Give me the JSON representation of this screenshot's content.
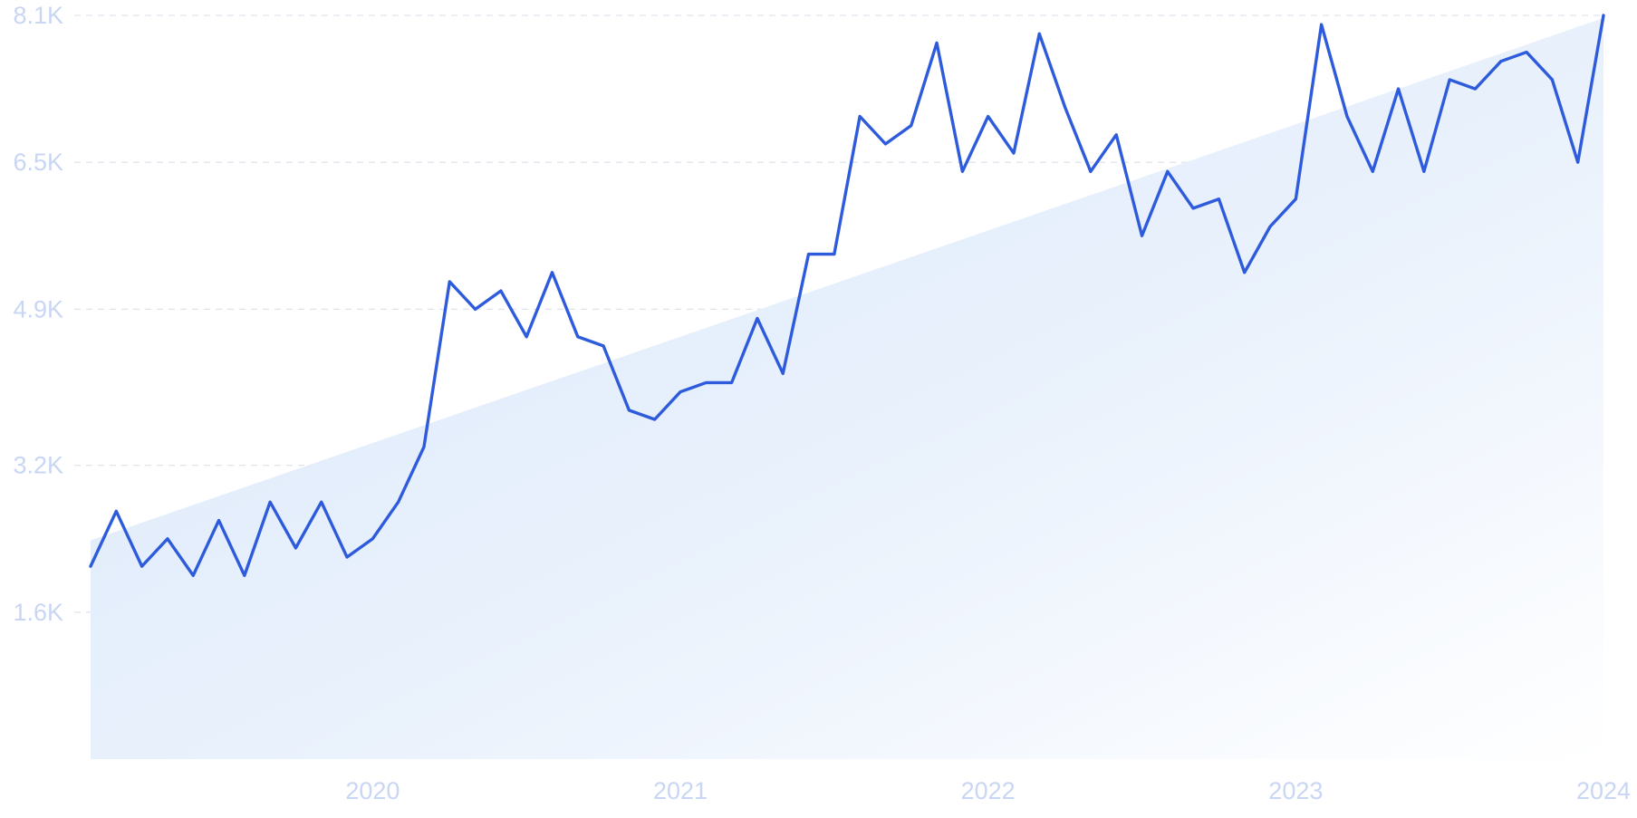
{
  "chart_data": {
    "type": "line",
    "title": "",
    "xlabel": "",
    "ylabel": "",
    "x_ticks": [
      "2020",
      "2021",
      "2022",
      "2023",
      "2024"
    ],
    "y_ticks": [
      "8.1K",
      "6.5K",
      "4.9K",
      "3.2K",
      "1.6K"
    ],
    "y_tick_values": [
      8100,
      6500,
      4900,
      3200,
      1600
    ],
    "ylim": [
      0,
      8100
    ],
    "xlim": [
      "2019-02",
      "2024-01"
    ],
    "grid": "horizontal dashed",
    "trend_area": true,
    "line_color": "#2e5bdc",
    "area_color": "#dbe8fa",
    "series": [
      {
        "x": [
          "2019-02",
          "2019-03",
          "2019-04",
          "2019-05",
          "2019-06",
          "2019-07",
          "2019-08",
          "2019-09",
          "2019-10",
          "2019-11",
          "2019-12",
          "2020-01",
          "2020-02",
          "2020-03",
          "2020-04",
          "2020-05",
          "2020-06",
          "2020-07",
          "2020-08",
          "2020-09",
          "2020-10",
          "2020-11",
          "2020-12",
          "2021-01",
          "2021-02",
          "2021-03",
          "2021-04",
          "2021-05",
          "2021-06",
          "2021-07",
          "2021-08",
          "2021-09",
          "2021-10",
          "2021-11",
          "2021-12",
          "2022-01",
          "2022-02",
          "2022-03",
          "2022-04",
          "2022-05",
          "2022-06",
          "2022-07",
          "2022-08",
          "2022-09",
          "2022-10",
          "2022-11",
          "2022-12",
          "2023-01",
          "2023-02",
          "2023-03",
          "2023-04",
          "2023-05",
          "2023-06",
          "2023-07",
          "2023-08",
          "2023-09",
          "2023-10",
          "2023-11",
          "2023-12",
          "2024-01"
        ],
        "values": [
          2100,
          2700,
          2100,
          2400,
          2000,
          2600,
          2000,
          2800,
          2300,
          2800,
          2200,
          2400,
          2800,
          3400,
          5200,
          4900,
          5100,
          4600,
          5300,
          4600,
          4500,
          3800,
          3700,
          4000,
          4100,
          4100,
          4800,
          4200,
          5500,
          5500,
          7000,
          6700,
          6900,
          7800,
          6400,
          7000,
          6600,
          7900,
          7100,
          6400,
          6800,
          5700,
          6400,
          6000,
          6100,
          5300,
          5800,
          6100,
          8000,
          7000,
          6400,
          7300,
          6400,
          7400,
          7300,
          7600,
          7700,
          7400,
          6500,
          8100
        ]
      }
    ]
  }
}
